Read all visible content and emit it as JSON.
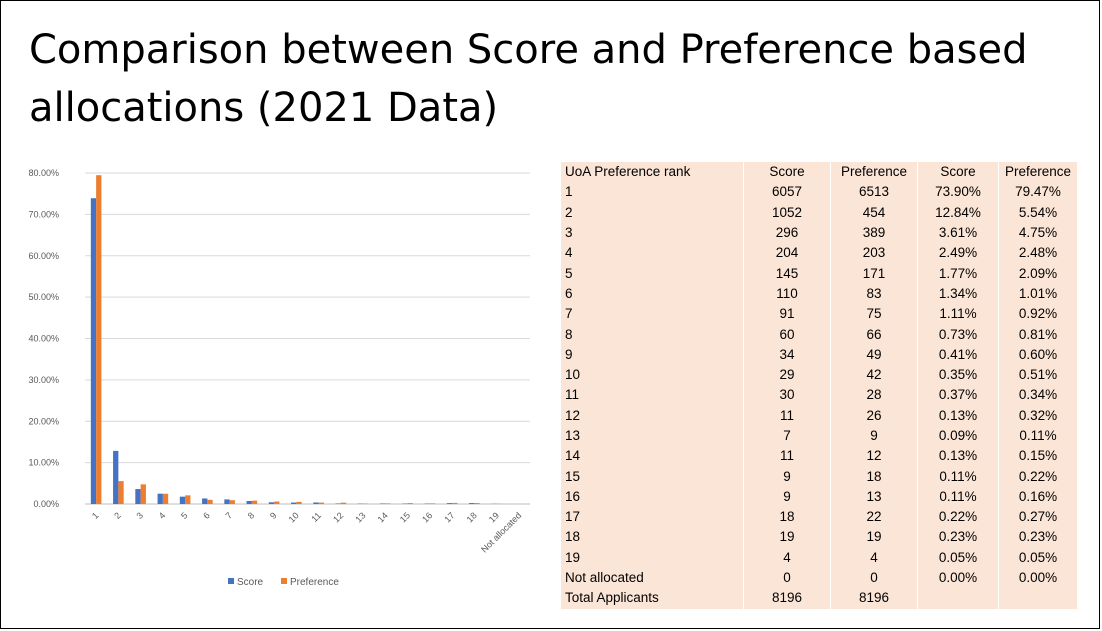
{
  "slide": {
    "title": "Comparison between Score and Preference based allocations (2021 Data)"
  },
  "chart_data": {
    "type": "bar",
    "title": "",
    "xlabel": "",
    "ylabel": "",
    "categories": [
      "1",
      "2",
      "3",
      "4",
      "5",
      "6",
      "7",
      "8",
      "9",
      "10",
      "11",
      "12",
      "13",
      "14",
      "15",
      "16",
      "17",
      "18",
      "19",
      "Not allocated"
    ],
    "series": [
      {
        "name": "Score",
        "color": "#4472c4",
        "values": [
          73.9,
          12.84,
          3.61,
          2.49,
          1.77,
          1.34,
          1.11,
          0.73,
          0.41,
          0.35,
          0.37,
          0.13,
          0.09,
          0.13,
          0.11,
          0.11,
          0.22,
          0.23,
          0.05,
          0.0
        ]
      },
      {
        "name": "Preference",
        "color": "#ed7d31",
        "values": [
          79.47,
          5.54,
          4.75,
          2.48,
          2.09,
          1.01,
          0.92,
          0.81,
          0.6,
          0.51,
          0.34,
          0.32,
          0.11,
          0.15,
          0.22,
          0.16,
          0.27,
          0.23,
          0.05,
          0.0
        ]
      }
    ],
    "ylim": [
      0,
      80
    ],
    "yticks": [
      "0.00%",
      "10.00%",
      "20.00%",
      "30.00%",
      "40.00%",
      "50.00%",
      "60.00%",
      "70.00%",
      "80.00%"
    ],
    "grid": true,
    "legend": "bottom"
  },
  "table": {
    "headers": [
      "UoA Preference rank",
      "Score",
      "Preference",
      "Score",
      "Preference"
    ],
    "rows": [
      [
        "1",
        "6057",
        "6513",
        "73.90%",
        "79.47%"
      ],
      [
        "2",
        "1052",
        "454",
        "12.84%",
        "5.54%"
      ],
      [
        "3",
        "296",
        "389",
        "3.61%",
        "4.75%"
      ],
      [
        "4",
        "204",
        "203",
        "2.49%",
        "2.48%"
      ],
      [
        "5",
        "145",
        "171",
        "1.77%",
        "2.09%"
      ],
      [
        "6",
        "110",
        "83",
        "1.34%",
        "1.01%"
      ],
      [
        "7",
        "91",
        "75",
        "1.11%",
        "0.92%"
      ],
      [
        "8",
        "60",
        "66",
        "0.73%",
        "0.81%"
      ],
      [
        "9",
        "34",
        "49",
        "0.41%",
        "0.60%"
      ],
      [
        "10",
        "29",
        "42",
        "0.35%",
        "0.51%"
      ],
      [
        "11",
        "30",
        "28",
        "0.37%",
        "0.34%"
      ],
      [
        "12",
        "11",
        "26",
        "0.13%",
        "0.32%"
      ],
      [
        "13",
        "7",
        "9",
        "0.09%",
        "0.11%"
      ],
      [
        "14",
        "11",
        "12",
        "0.13%",
        "0.15%"
      ],
      [
        "15",
        "9",
        "18",
        "0.11%",
        "0.22%"
      ],
      [
        "16",
        "9",
        "13",
        "0.11%",
        "0.16%"
      ],
      [
        "17",
        "18",
        "22",
        "0.22%",
        "0.27%"
      ],
      [
        "18",
        "19",
        "19",
        "0.23%",
        "0.23%"
      ],
      [
        "19",
        "4",
        "4",
        "0.05%",
        "0.05%"
      ],
      [
        "Not allocated",
        "0",
        "0",
        "0.00%",
        "0.00%"
      ],
      [
        "Total Applicants",
        "8196",
        "8196",
        "",
        ""
      ]
    ]
  }
}
